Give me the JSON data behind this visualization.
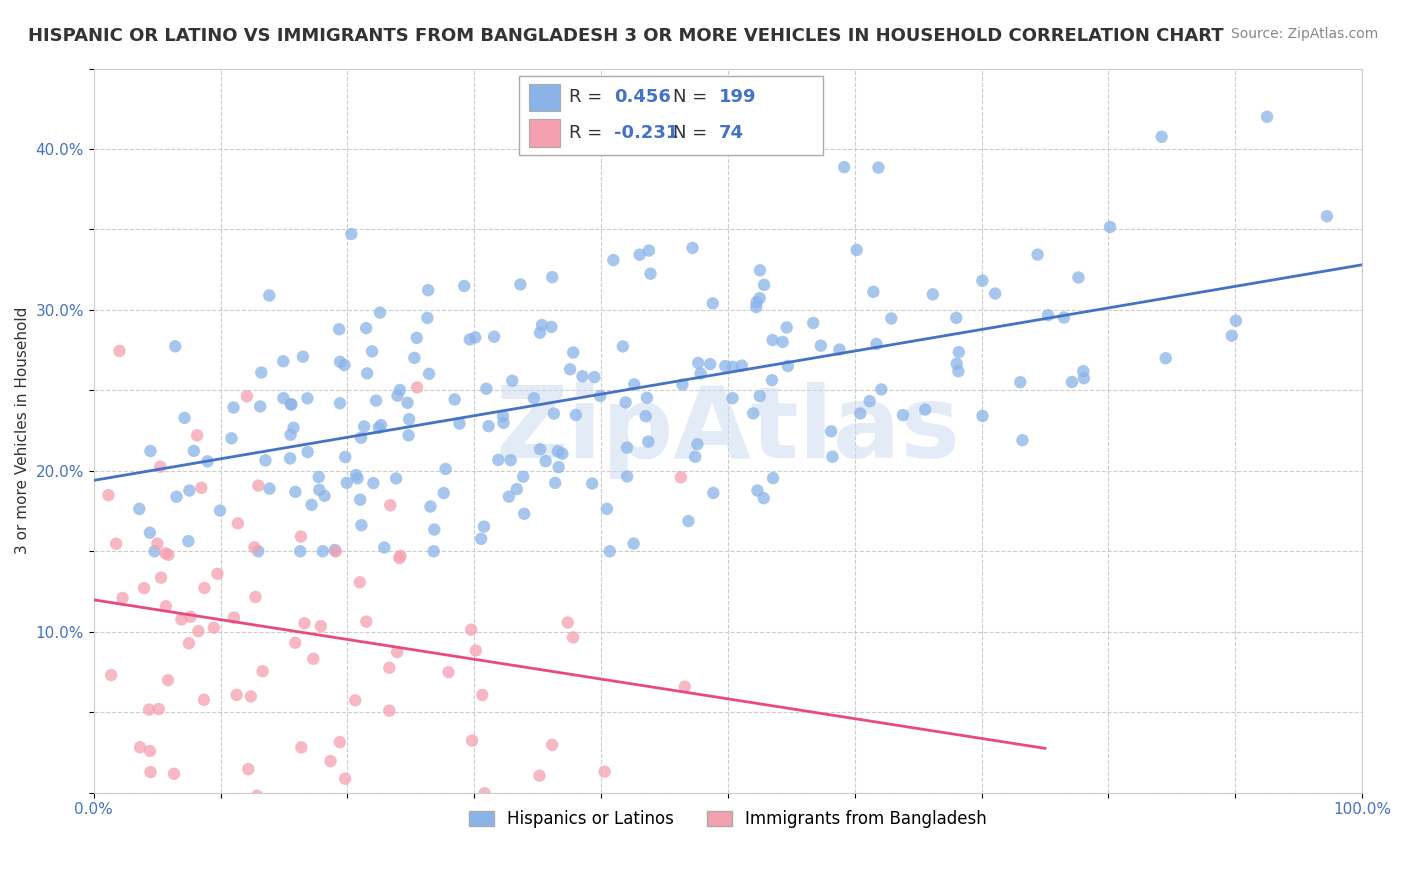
{
  "title": "HISPANIC OR LATINO VS IMMIGRANTS FROM BANGLADESH 3 OR MORE VEHICLES IN HOUSEHOLD CORRELATION CHART",
  "source": "Source: ZipAtlas.com",
  "ylabel": "3 or more Vehicles in Household",
  "xlabel": "",
  "r_blue": 0.456,
  "n_blue": 199,
  "r_pink": -0.231,
  "n_pink": 74,
  "blue_color": "#8ab4e8",
  "pink_color": "#f5a0b0",
  "blue_line_color": "#4472c4",
  "pink_line_color": "#e84a7f",
  "legend_blue_label": "Hispanics or Latinos",
  "legend_pink_label": "Immigrants from Bangladesh",
  "xlim": [
    0.0,
    1.0
  ],
  "ylim": [
    0.0,
    0.45
  ],
  "xtick_labels": [
    "0.0%",
    "",
    "",
    "",
    "",
    "",
    "",
    "",
    "",
    "",
    "100.0%"
  ],
  "ytick_labels": [
    "",
    "10.0%",
    "",
    "20.0%",
    "",
    "30.0%",
    "",
    "40.0%"
  ],
  "background_color": "#ffffff",
  "watermark_text": "ZipAtlas",
  "watermark_color": "#c8d8f0",
  "title_fontsize": 13,
  "axis_label_fontsize": 11,
  "tick_fontsize": 11,
  "legend_fontsize": 13,
  "source_fontsize": 10
}
